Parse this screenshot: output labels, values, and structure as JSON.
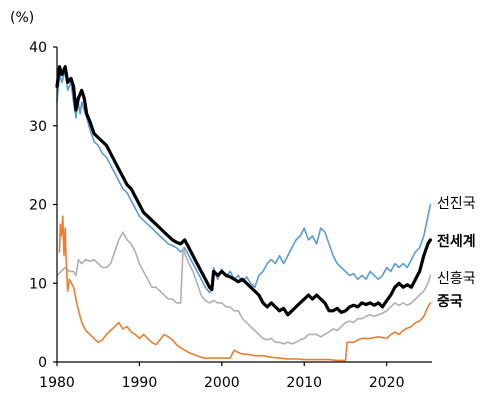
{
  "chart_data": {
    "type": "line",
    "unit_label": "(%)",
    "title": "",
    "xlabel": "",
    "ylabel": "",
    "xlim": [
      1980,
      2025.5
    ],
    "ylim": [
      0,
      40
    ],
    "x_ticks": [
      1980,
      1990,
      2000,
      2010,
      2020
    ],
    "y_ticks": [
      0,
      10,
      20,
      30,
      40
    ],
    "grid": false,
    "series": [
      {
        "name": "선진국",
        "color": "#5b9bd5",
        "width": 1.6,
        "bold_label": false,
        "x": [
          1980.0,
          1980.3,
          1980.6,
          1981.0,
          1981.3,
          1981.7,
          1982.0,
          1982.3,
          1982.5,
          1982.8,
          1983.0,
          1983.3,
          1983.6,
          1984.0,
          1984.5,
          1985.0,
          1985.5,
          1986.0,
          1986.5,
          1987.0,
          1987.5,
          1988.0,
          1988.5,
          1989.0,
          1989.5,
          1990.0,
          1990.5,
          1991.0,
          1991.5,
          1992.0,
          1992.5,
          1993.0,
          1993.5,
          1994.0,
          1994.5,
          1995.0,
          1995.5,
          1996.0,
          1996.5,
          1997.0,
          1997.5,
          1998.0,
          1998.5,
          1998.8,
          1999.0,
          1999.5,
          2000.0,
          2000.5,
          2001.0,
          2001.5,
          2002.0,
          2002.5,
          2003.0,
          2003.5,
          2004.0,
          2004.5,
          2005.0,
          2005.5,
          2006.0,
          2006.5,
          2007.0,
          2007.5,
          2008.0,
          2008.5,
          2009.0,
          2009.5,
          2010.0,
          2010.5,
          2011.0,
          2011.5,
          2012.0,
          2012.5,
          2013.0,
          2013.5,
          2014.0,
          2014.5,
          2015.0,
          2015.5,
          2016.0,
          2016.5,
          2017.0,
          2017.5,
          2018.0,
          2018.5,
          2019.0,
          2019.5,
          2020.0,
          2020.5,
          2021.0,
          2021.5,
          2022.0,
          2022.5,
          2023.0,
          2023.5,
          2024.0,
          2024.5,
          2025.0,
          2025.3
        ],
        "y": [
          33.0,
          36.5,
          35.5,
          37.0,
          34.5,
          35.5,
          33.0,
          31.0,
          33.5,
          31.5,
          33.0,
          32.0,
          31.0,
          29.5,
          28.0,
          27.5,
          26.5,
          26.0,
          25.0,
          24.0,
          23.0,
          22.0,
          21.5,
          20.5,
          19.5,
          18.5,
          18.0,
          17.5,
          17.0,
          16.5,
          16.0,
          15.5,
          15.0,
          14.8,
          14.5,
          14.0,
          14.5,
          13.5,
          12.5,
          11.5,
          10.5,
          9.5,
          8.8,
          9.2,
          12.0,
          10.5,
          11.8,
          10.8,
          11.5,
          10.5,
          11.0,
          10.2,
          10.8,
          10.0,
          9.5,
          11.0,
          11.5,
          12.5,
          13.0,
          12.5,
          13.5,
          12.5,
          13.5,
          14.5,
          15.5,
          16.0,
          17.0,
          15.5,
          16.0,
          15.0,
          17.0,
          16.5,
          15.0,
          13.5,
          12.5,
          12.0,
          11.5,
          11.0,
          11.2,
          10.5,
          11.0,
          10.5,
          11.5,
          11.0,
          10.5,
          11.0,
          12.0,
          11.5,
          12.5,
          12.0,
          12.5,
          12.0,
          13.0,
          14.0,
          14.5,
          16.0,
          18.5,
          20.0
        ]
      },
      {
        "name": "전세계",
        "color": "#000000",
        "width": 3.2,
        "bold_label": true,
        "x": [
          1980.0,
          1980.3,
          1980.6,
          1981.0,
          1981.3,
          1981.7,
          1982.0,
          1982.3,
          1982.6,
          1983.0,
          1983.3,
          1983.6,
          1984.0,
          1984.5,
          1985.0,
          1985.5,
          1986.0,
          1986.5,
          1987.0,
          1987.5,
          1988.0,
          1988.5,
          1989.0,
          1989.5,
          1990.0,
          1990.5,
          1991.0,
          1991.5,
          1992.0,
          1992.5,
          1993.0,
          1993.5,
          1994.0,
          1994.5,
          1995.0,
          1995.5,
          1996.0,
          1996.5,
          1997.0,
          1997.5,
          1998.0,
          1998.5,
          1998.8,
          1999.0,
          1999.5,
          2000.0,
          2000.5,
          2001.0,
          2001.5,
          2002.0,
          2002.5,
          2003.0,
          2003.5,
          2004.0,
          2004.5,
          2005.0,
          2005.5,
          2006.0,
          2006.5,
          2007.0,
          2007.5,
          2008.0,
          2008.5,
          2009.0,
          2009.5,
          2010.0,
          2010.5,
          2011.0,
          2011.5,
          2012.0,
          2012.5,
          2013.0,
          2013.5,
          2014.0,
          2014.5,
          2015.0,
          2015.5,
          2016.0,
          2016.5,
          2017.0,
          2017.5,
          2018.0,
          2018.5,
          2019.0,
          2019.5,
          2020.0,
          2020.5,
          2021.0,
          2021.5,
          2022.0,
          2022.5,
          2023.0,
          2023.5,
          2024.0,
          2024.5,
          2025.0,
          2025.3
        ],
        "y": [
          35.0,
          37.5,
          36.5,
          37.5,
          35.5,
          36.0,
          35.0,
          32.0,
          33.5,
          34.5,
          33.5,
          31.5,
          30.5,
          29.0,
          28.5,
          28.0,
          27.5,
          26.5,
          25.5,
          24.5,
          23.5,
          22.5,
          22.0,
          21.0,
          20.0,
          19.0,
          18.5,
          18.0,
          17.5,
          17.0,
          16.5,
          16.0,
          15.5,
          15.2,
          15.0,
          15.5,
          14.5,
          13.5,
          12.5,
          11.5,
          10.5,
          9.5,
          9.2,
          11.5,
          11.0,
          11.5,
          11.0,
          10.8,
          10.5,
          10.2,
          10.5,
          10.0,
          9.5,
          9.0,
          8.5,
          7.5,
          7.0,
          7.5,
          7.0,
          6.5,
          6.8,
          6.0,
          6.5,
          7.0,
          7.5,
          8.0,
          8.5,
          8.0,
          8.5,
          8.0,
          7.5,
          6.5,
          6.5,
          6.8,
          6.3,
          6.5,
          7.0,
          7.2,
          7.0,
          7.5,
          7.3,
          7.5,
          7.2,
          7.5,
          7.0,
          7.8,
          8.5,
          9.5,
          10.0,
          9.5,
          9.8,
          9.5,
          10.5,
          11.5,
          13.5,
          15.0,
          15.5
        ]
      },
      {
        "name": "신흥국",
        "color": "#b0b0b0",
        "width": 1.6,
        "bold_label": false,
        "x": [
          1980.0,
          1980.5,
          1981.0,
          1981.5,
          1982.0,
          1982.3,
          1982.6,
          1983.0,
          1983.5,
          1984.0,
          1984.5,
          1985.0,
          1985.5,
          1986.0,
          1986.5,
          1987.0,
          1987.5,
          1988.0,
          1988.5,
          1989.0,
          1989.5,
          1990.0,
          1990.5,
          1991.0,
          1991.5,
          1992.0,
          1992.5,
          1993.0,
          1993.5,
          1994.0,
          1994.5,
          1995.0,
          1995.3,
          1995.6,
          1996.0,
          1996.5,
          1997.0,
          1997.5,
          1998.0,
          1998.5,
          1999.0,
          1999.5,
          2000.0,
          2000.5,
          2001.0,
          2001.5,
          2002.0,
          2002.5,
          2003.0,
          2003.5,
          2004.0,
          2004.5,
          2005.0,
          2005.5,
          2006.0,
          2006.5,
          2007.0,
          2007.5,
          2008.0,
          2008.5,
          2009.0,
          2009.5,
          2010.0,
          2010.5,
          2011.0,
          2011.5,
          2012.0,
          2012.5,
          2013.0,
          2013.5,
          2014.0,
          2014.5,
          2015.0,
          2015.5,
          2016.0,
          2016.5,
          2017.0,
          2017.5,
          2018.0,
          2018.5,
          2019.0,
          2019.5,
          2020.0,
          2020.5,
          2021.0,
          2021.5,
          2022.0,
          2022.5,
          2023.0,
          2023.5,
          2024.0,
          2024.5,
          2025.0,
          2025.3
        ],
        "y": [
          11.0,
          11.5,
          12.0,
          11.5,
          11.5,
          11.0,
          13.0,
          12.5,
          13.0,
          12.8,
          13.0,
          12.5,
          12.0,
          12.0,
          12.5,
          14.0,
          15.5,
          16.5,
          15.5,
          15.0,
          14.0,
          12.5,
          11.5,
          10.5,
          9.5,
          9.5,
          9.0,
          8.5,
          8.0,
          8.0,
          7.5,
          7.5,
          14.5,
          13.5,
          12.5,
          11.5,
          10.0,
          8.5,
          7.8,
          7.5,
          7.8,
          7.5,
          7.5,
          7.0,
          7.0,
          6.5,
          6.5,
          5.5,
          5.0,
          4.5,
          4.0,
          3.5,
          3.0,
          2.8,
          3.0,
          2.5,
          2.5,
          2.3,
          2.5,
          2.3,
          2.5,
          2.8,
          3.0,
          3.5,
          3.5,
          3.5,
          3.2,
          3.5,
          3.8,
          4.2,
          4.0,
          4.5,
          5.0,
          5.2,
          5.0,
          5.5,
          5.5,
          5.8,
          6.0,
          5.8,
          6.0,
          6.2,
          6.5,
          7.0,
          7.5,
          7.2,
          7.5,
          7.2,
          7.5,
          8.0,
          8.5,
          9.0,
          10.0,
          11.0
        ]
      },
      {
        "name": "중국",
        "color": "#ed7d31",
        "width": 1.6,
        "bold_label": true,
        "x": [
          1980.3,
          1980.4,
          1980.55,
          1980.7,
          1980.85,
          1981.0,
          1981.1,
          1981.3,
          1981.5,
          1982.0,
          1982.5,
          1983.0,
          1983.5,
          1984.0,
          1984.5,
          1985.0,
          1985.5,
          1986.0,
          1986.5,
          1987.0,
          1987.5,
          1988.0,
          1988.5,
          1989.0,
          1989.5,
          1990.0,
          1990.5,
          1991.0,
          1991.5,
          1992.0,
          1992.5,
          1993.0,
          1993.5,
          1994.0,
          1994.5,
          1995.0,
          1995.5,
          1996.0,
          1996.5,
          1997.0,
          1997.5,
          1998.0,
          1999.0,
          2000.0,
          2001.0,
          2001.5,
          2002.0,
          2002.5,
          2003.0,
          2004.0,
          2005.0,
          2006.0,
          2007.0,
          2008.0,
          2009.0,
          2010.0,
          2011.0,
          2012.0,
          2013.0,
          2014.0,
          2015.0,
          2015.2,
          2015.5,
          2016.0,
          2016.5,
          2017.0,
          2018.0,
          2019.0,
          2020.0,
          2020.5,
          2021.0,
          2021.5,
          2022.0,
          2022.5,
          2023.0,
          2023.5,
          2024.0,
          2024.5,
          2025.0,
          2025.3
        ],
        "y": [
          14.0,
          17.5,
          16.0,
          18.5,
          13.5,
          17.0,
          13.0,
          9.0,
          10.5,
          9.5,
          7.0,
          5.0,
          4.0,
          3.5,
          3.0,
          2.5,
          2.8,
          3.5,
          4.0,
          4.5,
          5.0,
          4.2,
          4.5,
          3.8,
          3.5,
          3.0,
          3.5,
          3.0,
          2.5,
          2.2,
          2.8,
          3.5,
          3.2,
          2.8,
          2.2,
          1.8,
          1.5,
          1.2,
          1.0,
          0.8,
          0.6,
          0.5,
          0.5,
          0.5,
          0.5,
          1.5,
          1.2,
          1.0,
          1.0,
          0.8,
          0.8,
          0.6,
          0.5,
          0.4,
          0.4,
          0.3,
          0.3,
          0.3,
          0.3,
          0.2,
          0.2,
          2.5,
          2.5,
          2.5,
          2.8,
          3.0,
          3.0,
          3.2,
          3.0,
          3.5,
          3.8,
          3.5,
          4.0,
          4.3,
          4.5,
          5.0,
          5.2,
          5.8,
          7.0,
          7.5
        ]
      }
    ]
  }
}
